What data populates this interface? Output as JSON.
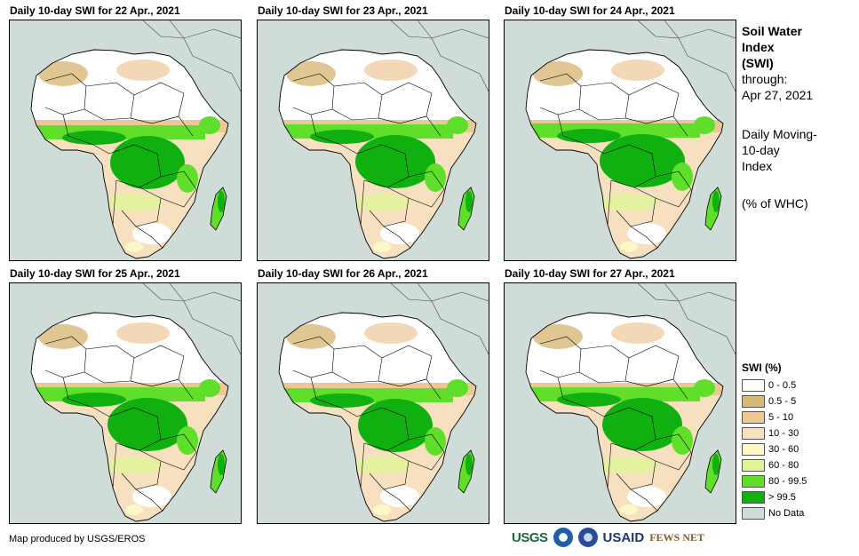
{
  "panels": [
    {
      "title": "Daily 10-day  SWI for 22 Apr., 2021",
      "wet_shift": 0
    },
    {
      "title": "Daily 10-day  SWI for 23 Apr., 2021",
      "wet_shift": 1
    },
    {
      "title": "Daily 10-day  SWI for 24 Apr., 2021",
      "wet_shift": 2
    },
    {
      "title": "Daily 10-day  SWI for 25 Apr., 2021",
      "wet_shift": 1
    },
    {
      "title": "Daily 10-day  SWI for 26 Apr., 2021",
      "wet_shift": 0
    },
    {
      "title": "Daily 10-day  SWI for 27 Apr., 2021",
      "wet_shift": 1
    }
  ],
  "sidebar": {
    "title_line1": "Soil Water",
    "title_line2": "Index",
    "title_line3": "(SWI)",
    "through_label": "through:",
    "through_date": "Apr 27, 2021",
    "desc_line1": "Daily Moving-",
    "desc_line2": "10-day",
    "desc_line3": "Index",
    "units": "(% of WHC)"
  },
  "legend": {
    "title": "SWI (%)",
    "items": [
      {
        "label": "0 - 0.5",
        "color": "#ffffff"
      },
      {
        "label": "0.5 - 5",
        "color": "#d8b878"
      },
      {
        "label": "5 - 10",
        "color": "#ecc898"
      },
      {
        "label": "10 - 30",
        "color": "#f7e0c0"
      },
      {
        "label": "30 - 60",
        "color": "#fcf8c8"
      },
      {
        "label": "60 - 80",
        "color": "#e0f59a"
      },
      {
        "label": "80 - 99.5",
        "color": "#5fdf2a"
      },
      {
        "label": "> 99.5",
        "color": "#10b010"
      },
      {
        "label": "No Data",
        "color": "#cfdcd8"
      }
    ]
  },
  "credit": "Map produced by USGS/EROS",
  "logos": {
    "usgs": "USGS",
    "usaid": "USAID",
    "fews": "FEWS NET"
  }
}
